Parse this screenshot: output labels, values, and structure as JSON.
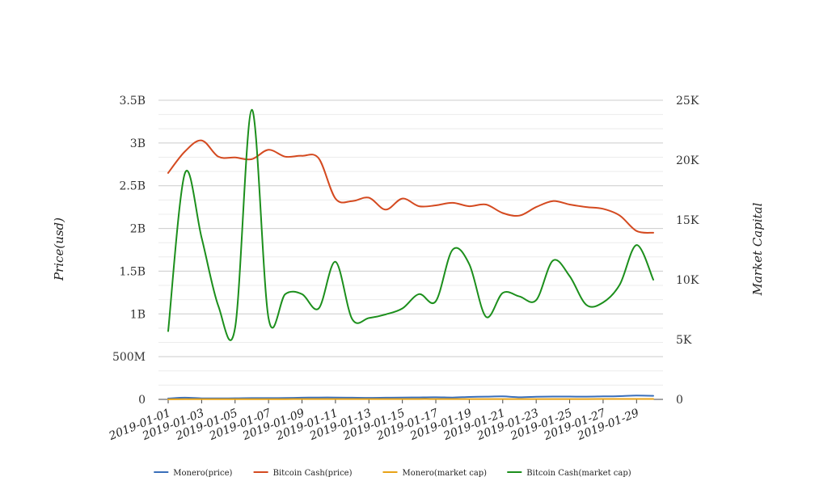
{
  "chart_data": {
    "type": "line",
    "title": "",
    "xlabel": "",
    "ylabel": "Price(usd)",
    "y2label": "Market Capital",
    "x": [
      "2019-01-01",
      "2019-01-02",
      "2019-01-03",
      "2019-01-04",
      "2019-01-05",
      "2019-01-06",
      "2019-01-07",
      "2019-01-08",
      "2019-01-09",
      "2019-01-10",
      "2019-01-11",
      "2019-01-12",
      "2019-01-13",
      "2019-01-14",
      "2019-01-15",
      "2019-01-16",
      "2019-01-17",
      "2019-01-18",
      "2019-01-19",
      "2019-01-20",
      "2019-01-21",
      "2019-01-22",
      "2019-01-23",
      "2019-01-24",
      "2019-01-25",
      "2019-01-26",
      "2019-01-27",
      "2019-01-28",
      "2019-01-29",
      "2019-01-30"
    ],
    "xtick_labels": [
      "2019-01-01",
      "2019-01-03",
      "2019-01-05",
      "2019-01-07",
      "2019-01-09",
      "2019-01-11",
      "2019-01-13",
      "2019-01-15",
      "2019-01-17",
      "2019-01-19",
      "2019-01-21",
      "2019-01-23",
      "2019-01-25",
      "2019-01-27",
      "2019-01-29"
    ],
    "ylim": [
      0,
      3500000000
    ],
    "y2lim": [
      0,
      25000
    ],
    "yticks": [
      0,
      500000000,
      1000000000,
      1500000000,
      2000000000,
      2500000000,
      3000000000,
      3500000000
    ],
    "ytick_labels": [
      "0",
      "500M",
      "1B",
      "1.5B",
      "2B",
      "2.5B",
      "3B",
      "3.5B"
    ],
    "y2ticks": [
      0,
      5000,
      10000,
      15000,
      20000,
      25000
    ],
    "y2tick_labels": [
      "0",
      "5K",
      "10K",
      "15K",
      "20K",
      "25K"
    ],
    "grid": true,
    "legend_position": "bottom-center",
    "series": [
      {
        "name": "Monero(price)",
        "axis": "left",
        "color": "#3a6fba",
        "values": [
          10000000,
          20000000,
          12000000,
          12000000,
          13000000,
          15000000,
          15000000,
          16000000,
          20000000,
          22000000,
          22000000,
          20000000,
          18000000,
          20000000,
          22000000,
          23000000,
          25000000,
          22000000,
          28000000,
          32000000,
          35000000,
          25000000,
          30000000,
          33000000,
          33000000,
          32000000,
          35000000,
          38000000,
          45000000,
          42000000
        ]
      },
      {
        "name": "Bitcoin Cash(price)",
        "axis": "left",
        "color": "#d44a20",
        "values": [
          2650000000,
          2900000000,
          3030000000,
          2840000000,
          2830000000,
          2810000000,
          2920000000,
          2840000000,
          2850000000,
          2820000000,
          2350000000,
          2320000000,
          2360000000,
          2220000000,
          2350000000,
          2260000000,
          2270000000,
          2300000000,
          2260000000,
          2280000000,
          2180000000,
          2150000000,
          2250000000,
          2320000000,
          2280000000,
          2250000000,
          2230000000,
          2150000000,
          1970000000,
          1950000000
        ]
      },
      {
        "name": "Monero(market cap)",
        "axis": "right",
        "color": "#e8a317",
        "values": [
          10,
          20,
          15,
          15,
          15,
          20,
          20,
          20,
          25,
          25,
          25,
          25,
          25,
          25,
          25,
          30,
          30,
          30,
          30,
          30,
          30,
          30,
          30,
          30,
          30,
          30,
          35,
          35,
          35,
          35
        ]
      },
      {
        "name": "Bitcoin Cash(market cap)",
        "axis": "right",
        "color": "#1c8f1c",
        "values": [
          5700,
          18900,
          13500,
          7800,
          6000,
          24200,
          6800,
          8800,
          8800,
          7600,
          11500,
          6700,
          6800,
          7100,
          7600,
          8800,
          8200,
          12500,
          11300,
          6900,
          8900,
          8600,
          8300,
          11600,
          10300,
          7900,
          8100,
          9600,
          12900,
          10000
        ]
      }
    ]
  }
}
